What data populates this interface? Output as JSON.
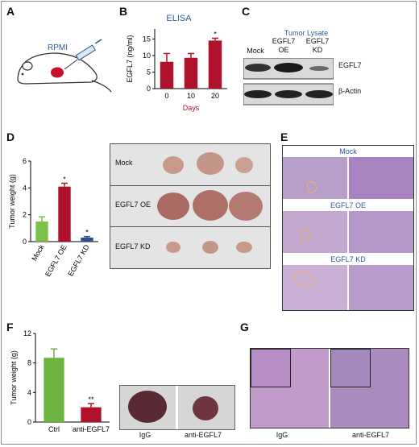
{
  "panel_labels": [
    "A",
    "B",
    "C",
    "D",
    "E",
    "F",
    "G"
  ],
  "panelA": {
    "syringe_label": "RPMI"
  },
  "panelB": {
    "title": "ELISA"
  },
  "panelC": {
    "title": "Tumor Lysate",
    "columns": [
      "Mock",
      "EGFL7\nOE",
      "EGFL7\nKD"
    ],
    "bands": [
      "EGFL7",
      "β-Actin"
    ]
  },
  "panelD": {
    "photo_rows": [
      "Mock",
      "EGFL7 OE",
      "EGFL7 KD"
    ]
  },
  "panelE": {
    "sections": [
      "Mock",
      "EGFL7 OE",
      "EGFL7 KD"
    ]
  },
  "panelF": {
    "photo_labels": [
      "IgG",
      "anti-EGFL7"
    ]
  },
  "panelG": {
    "labels": [
      "IgG",
      "anti-EGFL7"
    ]
  },
  "chart_data": [
    {
      "id": "B",
      "type": "bar",
      "title": "ELISA",
      "categories": [
        "0",
        "10",
        "20"
      ],
      "values": [
        8.1,
        9.3,
        14.5
      ],
      "errors": [
        2.5,
        1.3,
        0.7
      ],
      "significance": [
        "",
        "",
        "*"
      ],
      "xlabel": "Days",
      "ylabel": "EGFL7 (ng/ml)",
      "ylim": [
        0,
        18
      ],
      "yticks": [
        "0",
        "5",
        "10",
        "15"
      ],
      "colors": [
        "#b0122b",
        "#b0122b",
        "#b0122b"
      ]
    },
    {
      "id": "D",
      "type": "bar",
      "title": "",
      "categories": [
        "Mock",
        "EGFL7 OE",
        "EGFL7 KD"
      ],
      "values": [
        1.5,
        4.1,
        0.3
      ],
      "errors": [
        0.35,
        0.25,
        0.08
      ],
      "significance": [
        "",
        "*",
        "*"
      ],
      "xlabel": "",
      "ylabel": "Tumor weight (g)",
      "ylim": [
        0,
        6
      ],
      "yticks": [
        "0",
        "2",
        "4",
        "6"
      ],
      "colors": [
        "#7cc24a",
        "#b0122b",
        "#2f4f8f"
      ]
    },
    {
      "id": "F",
      "type": "bar",
      "title": "",
      "categories": [
        "Ctrl",
        "anti-EGFL7"
      ],
      "values": [
        8.7,
        2.0
      ],
      "errors": [
        1.2,
        0.5
      ],
      "significance": [
        "",
        "**"
      ],
      "xlabel": "",
      "ylabel": "Tumor weight (g)",
      "ylim": [
        0,
        12
      ],
      "yticks": [
        "0",
        "4",
        "8",
        "12"
      ],
      "colors": [
        "#6ab43f",
        "#b0122b"
      ]
    }
  ]
}
